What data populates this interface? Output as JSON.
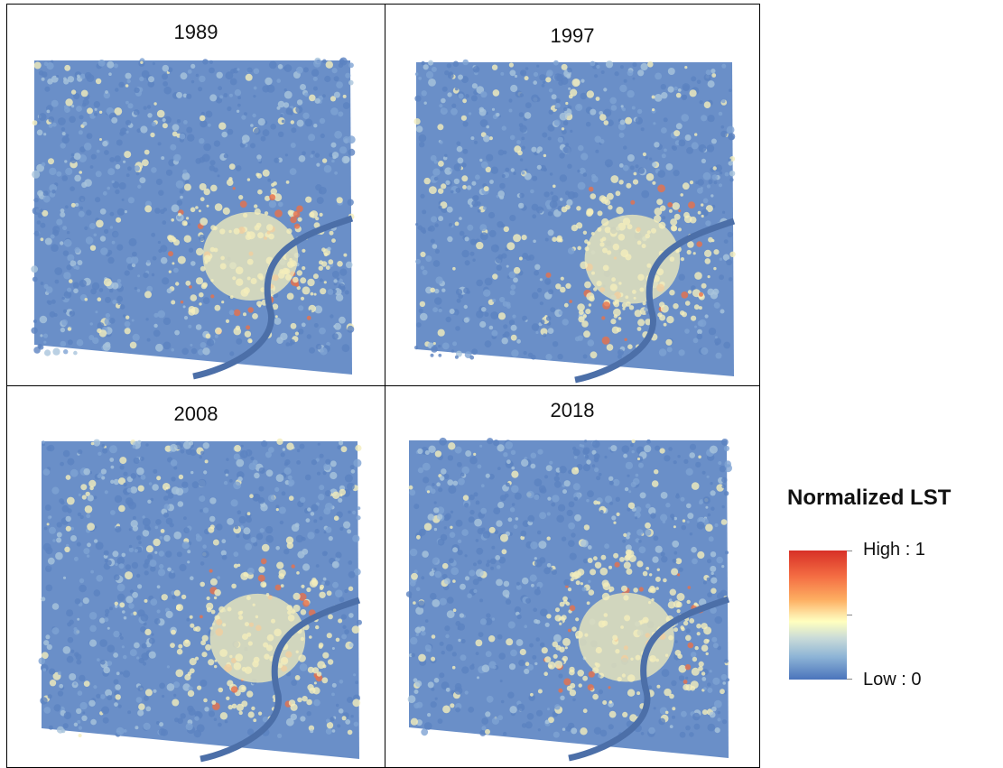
{
  "panels": [
    {
      "year": "1989"
    },
    {
      "year": "1997"
    },
    {
      "year": "2008"
    },
    {
      "year": "2018"
    }
  ],
  "legend": {
    "title": "Normalized LST",
    "high_label": "High : 1",
    "low_label": "Low : 0",
    "ramp_colors": [
      "#d73027",
      "#f46d43",
      "#fdae61",
      "#ffffbf",
      "#c9dbd8",
      "#8fb5d6",
      "#4a74bc"
    ]
  },
  "colors": {
    "water": "#4c6fa8",
    "land_cool": "#5b82c1",
    "land_mid": "#f4edbb",
    "land_hot": "#e8704a"
  }
}
